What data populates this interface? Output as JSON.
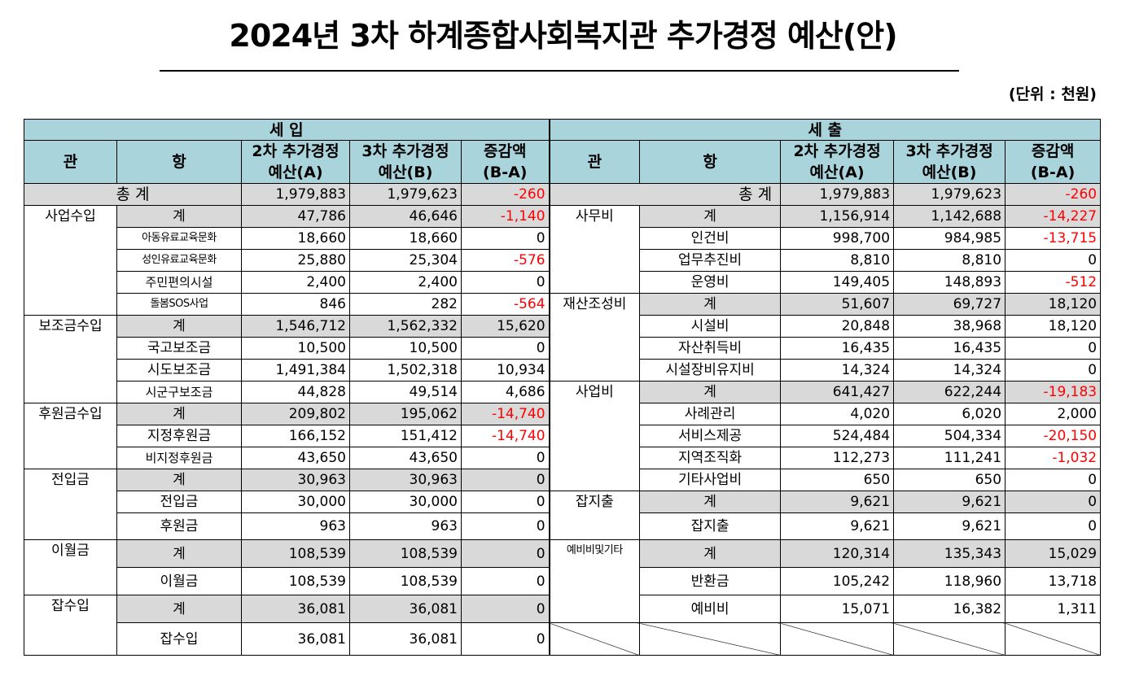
{
  "title": "2024년 3차 하계종합사회복지관 추가경정 예산(안)",
  "unit": "(단위 : 천원)",
  "header": {
    "income": "세     입",
    "expense": "세           출",
    "gwan": "관",
    "hang": "항",
    "col_a1": "2차 추가경정",
    "col_a2": "예산(A)",
    "col_b1": "3차 추가경정",
    "col_b2": "예산(B)",
    "col_c1": "증감액",
    "col_c2": "(B-A)"
  },
  "total": {
    "label": "총  계",
    "income": {
      "a": "1,979,883",
      "b": "1,979,623",
      "d": "-260"
    },
    "expense": {
      "a": "1,979,883",
      "b": "1,979,623",
      "d": "-260"
    }
  },
  "rows": [
    {
      "ig": "사업수입",
      "ih": "계",
      "ia": "47,786",
      "ib": "46,646",
      "id": "-1,140",
      "eg": "사무비",
      "eh": "계",
      "ea": "1,156,914",
      "eb": "1,142,688",
      "ed": "-14,227"
    },
    {
      "ig": "",
      "ih": "아동유료교육문화",
      "ia": "18,660",
      "ib": "18,660",
      "id": "0",
      "eg": "",
      "eh": "인건비",
      "ea": "998,700",
      "eb": "984,985",
      "ed": "-13,715"
    },
    {
      "ig": "",
      "ih": "성인유료교육문화",
      "ia": "25,880",
      "ib": "25,304",
      "id": "-576",
      "eg": "",
      "eh": "업무추진비",
      "ea": "8,810",
      "eb": "8,810",
      "ed": "0"
    },
    {
      "ig": "",
      "ih": "주민편의시설",
      "ia": "2,400",
      "ib": "2,400",
      "id": "0",
      "eg": "",
      "eh": "운영비",
      "ea": "149,405",
      "eb": "148,893",
      "ed": "-512"
    },
    {
      "ig": "",
      "ih": "돌봄SOS사업",
      "ia": "846",
      "ib": "282",
      "id": "-564",
      "eg": "재산조성비",
      "eh": "계",
      "ea": "51,607",
      "eb": "69,727",
      "ed": "18,120"
    },
    {
      "ig": "보조금수입",
      "ih": "계",
      "ia": "1,546,712",
      "ib": "1,562,332",
      "id": "15,620",
      "eg": "",
      "eh": "시설비",
      "ea": "20,848",
      "eb": "38,968",
      "ed": "18,120"
    },
    {
      "ig": "",
      "ih": "국고보조금",
      "ia": "10,500",
      "ib": "10,500",
      "id": "0",
      "eg": "",
      "eh": "자산취득비",
      "ea": "16,435",
      "eb": "16,435",
      "ed": "0"
    },
    {
      "ig": "",
      "ih": "시도보조금",
      "ia": "1,491,384",
      "ib": "1,502,318",
      "id": "10,934",
      "eg": "",
      "eh": "시설장비유지비",
      "ea": "14,324",
      "eb": "14,324",
      "ed": "0"
    },
    {
      "ig": "",
      "ih": "시군구보조금",
      "ia": "44,828",
      "ib": "49,514",
      "id": "4,686",
      "eg": "사업비",
      "eh": "계",
      "ea": "641,427",
      "eb": "622,244",
      "ed": "-19,183"
    },
    {
      "ig": "후원금수입",
      "ih": "계",
      "ia": "209,802",
      "ib": "195,062",
      "id": "-14,740",
      "eg": "",
      "eh": "사례관리",
      "ea": "4,020",
      "eb": "6,020",
      "ed": "2,000"
    },
    {
      "ig": "",
      "ih": "지정후원금",
      "ia": "166,152",
      "ib": "151,412",
      "id": "-14,740",
      "eg": "",
      "eh": "서비스제공",
      "ea": "524,484",
      "eb": "504,334",
      "ed": "-20,150"
    },
    {
      "ig": "",
      "ih": "비지정후원금",
      "ia": "43,650",
      "ib": "43,650",
      "id": "0",
      "eg": "",
      "eh": "지역조직화",
      "ea": "112,273",
      "eb": "111,241",
      "ed": "-1,032"
    },
    {
      "ig": "전입금",
      "ih": "계",
      "ia": "30,963",
      "ib": "30,963",
      "id": "0",
      "eg": "",
      "eh": "기타사업비",
      "ea": "650",
      "eb": "650",
      "ed": "0"
    },
    {
      "ig": "",
      "ih": "전입금",
      "ia": "30,000",
      "ib": "30,000",
      "id": "0",
      "eg": "잡지출",
      "eh": "계",
      "ea": "9,621",
      "eb": "9,621",
      "ed": "0"
    },
    {
      "ig": "",
      "ih": "후원금",
      "ia": "963",
      "ib": "963",
      "id": "0",
      "eg": "",
      "eh": "잡지출",
      "ea": "9,621",
      "eb": "9,621",
      "ed": "0"
    },
    {
      "ig": "이월금",
      "ih": "계",
      "ia": "108,539",
      "ib": "108,539",
      "id": "0",
      "eg": "예비비및기타",
      "eh": "계",
      "ea": "120,314",
      "eb": "135,343",
      "ed": "15,029"
    },
    {
      "ig": "",
      "ih": "이월금",
      "ia": "108,539",
      "ib": "108,539",
      "id": "0",
      "eg": "",
      "eh": "반환금",
      "ea": "105,242",
      "eb": "118,960",
      "ed": "13,718"
    },
    {
      "ig": "잡수입",
      "ih": "계",
      "ia": "36,081",
      "ib": "36,081",
      "id": "0",
      "eg": "",
      "eh": "예비비",
      "ea": "15,071",
      "eb": "16,382",
      "ed": "1,311"
    },
    {
      "ig": "",
      "ih": "잡수입",
      "ia": "36,081",
      "ib": "36,081",
      "id": "0",
      "eg": "",
      "eh": "",
      "ea": "",
      "eb": "",
      "ed": ""
    }
  ]
}
